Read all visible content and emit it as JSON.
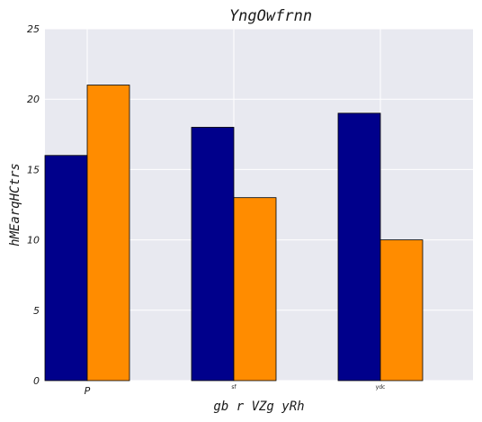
{
  "chart_data": {
    "type": "bar",
    "title": "YngOwfrnn",
    "xlabel": "gb r  VZg yRh",
    "ylabel": "hMEarqHCtrs",
    "categories": [
      "P",
      "sf",
      "ydc"
    ],
    "series": [
      {
        "values": [
          16,
          18,
          19
        ],
        "color": "#00008B"
      },
      {
        "values": [
          21,
          13,
          10
        ],
        "color": "#FF8C00"
      }
    ],
    "ylim": [
      0,
      25
    ],
    "yticks": [
      0,
      5,
      10,
      15,
      20,
      25
    ],
    "grid": true,
    "plot_background": "#E8E9F0"
  }
}
